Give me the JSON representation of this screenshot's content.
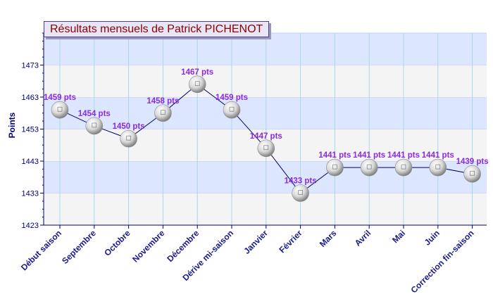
{
  "chart_data": {
    "type": "line",
    "title": "Résultats mensuels de Patrick PICHENOT",
    "ylabel": "Points",
    "xlabel": "",
    "ylim": [
      1423,
      1483
    ],
    "yticks": [
      1423,
      1433,
      1443,
      1453,
      1463,
      1473
    ],
    "grid": true,
    "categories": [
      "Début saison",
      "Septembre",
      "Octobre",
      "Novembre",
      "Décembre",
      "Dérive mi-saison",
      "Janvier",
      "Février",
      "Mars",
      "Avril",
      "Mai",
      "Juin",
      "Correction fin-saison"
    ],
    "values": [
      1459,
      1454,
      1450,
      1458,
      1467,
      1459,
      1447,
      1433,
      1441,
      1441,
      1441,
      1441,
      1439
    ],
    "point_labels": [
      "1459 pts",
      "1454 pts",
      "1450 pts",
      "1458 pts",
      "1467 pts",
      "1459 pts",
      "1447 pts",
      "1433 pts",
      "1441 pts",
      "1441 pts",
      "1441 pts",
      "1441 pts",
      "1439 pts"
    ],
    "colors": {
      "line": "#00006b",
      "axis_text": "#00007a",
      "category_text": "#1a1a8c",
      "point_label": "#8a2be2",
      "band_light": "#f4f4f4",
      "band_blue": "#dce6ff",
      "grid_vertical": "#a8d8ea",
      "title_text": "#8b0000"
    },
    "marker": "ping-pong-ball-icon"
  }
}
